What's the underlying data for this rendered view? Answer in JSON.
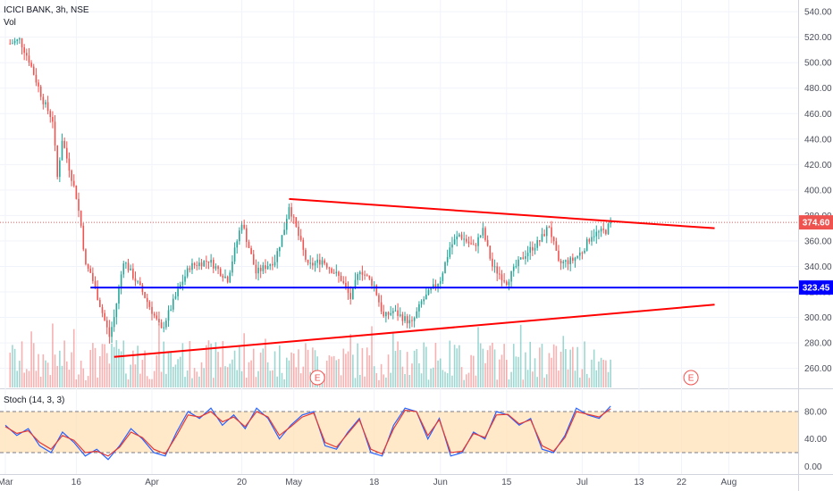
{
  "header": {
    "symbol_line": "ICICI BANK, 3h, NSE",
    "vol_label": "Vol"
  },
  "stoch_header": "Stoch (14, 3, 3)",
  "colors": {
    "up": "#26a69a",
    "down": "#ef5350",
    "trendline": "#ff0000",
    "support": "#0000ff",
    "price_tag": "#ef5350",
    "support_tag": "#0000ff",
    "stoch_k": "#2962ff",
    "stoch_d": "#e53935",
    "stoch_band": "#ffe0b2"
  },
  "chart_data": [
    {
      "type": "candlestick",
      "title": "ICICI BANK, 3h, NSE",
      "price_axis": {
        "min": 245,
        "max": 545,
        "ticks": [
          260,
          280,
          300,
          320,
          340,
          360,
          380,
          400,
          420,
          440,
          460,
          480,
          500,
          520,
          540
        ]
      },
      "time_axis": {
        "labels": [
          "Mar",
          "16",
          "Apr",
          "20",
          "May",
          "18",
          "Jun",
          "15",
          "Jul",
          "13",
          "22",
          "Aug"
        ]
      },
      "last_price": 374.6,
      "last_price_label": "374.60",
      "support_level": 323.45,
      "support_label": "323.45",
      "approx_closes": [
        {
          "date": "Mar 02",
          "close": 515
        },
        {
          "date": "Mar 04",
          "close": 518
        },
        {
          "date": "Mar 06",
          "close": 502
        },
        {
          "date": "Mar 09",
          "close": 470
        },
        {
          "date": "Mar 11",
          "close": 455
        },
        {
          "date": "Mar 12",
          "close": 410
        },
        {
          "date": "Mar 13",
          "close": 440
        },
        {
          "date": "Mar 16",
          "close": 395
        },
        {
          "date": "Mar 17",
          "close": 372
        },
        {
          "date": "Mar 18",
          "close": 340
        },
        {
          "date": "Mar 19",
          "close": 335
        },
        {
          "date": "Mar 23",
          "close": 285
        },
        {
          "date": "Mar 24",
          "close": 300
        },
        {
          "date": "Mar 26",
          "close": 345
        },
        {
          "date": "Mar 30",
          "close": 320
        },
        {
          "date": "Apr 03",
          "close": 290
        },
        {
          "date": "Apr 07",
          "close": 325
        },
        {
          "date": "Apr 09",
          "close": 340
        },
        {
          "date": "Apr 13",
          "close": 345
        },
        {
          "date": "Apr 17",
          "close": 330
        },
        {
          "date": "Apr 20",
          "close": 375
        },
        {
          "date": "Apr 23",
          "close": 335
        },
        {
          "date": "Apr 27",
          "close": 345
        },
        {
          "date": "Apr 29",
          "close": 370
        },
        {
          "date": "Apr 30",
          "close": 388
        },
        {
          "date": "May 04",
          "close": 340
        },
        {
          "date": "May 07",
          "close": 345
        },
        {
          "date": "May 11",
          "close": 330
        },
        {
          "date": "May 13",
          "close": 315
        },
        {
          "date": "May 15",
          "close": 338
        },
        {
          "date": "May 18",
          "close": 325
        },
        {
          "date": "May 20",
          "close": 300
        },
        {
          "date": "May 22",
          "close": 305
        },
        {
          "date": "May 26",
          "close": 295
        },
        {
          "date": "May 28",
          "close": 312
        },
        {
          "date": "Jun 01",
          "close": 330
        },
        {
          "date": "Jun 03",
          "close": 355
        },
        {
          "date": "Jun 05",
          "close": 365
        },
        {
          "date": "Jun 08",
          "close": 355
        },
        {
          "date": "Jun 10",
          "close": 368
        },
        {
          "date": "Jun 12",
          "close": 340
        },
        {
          "date": "Jun 15",
          "close": 328
        },
        {
          "date": "Jun 17",
          "close": 340
        },
        {
          "date": "Jun 19",
          "close": 350
        },
        {
          "date": "Jun 22",
          "close": 360
        },
        {
          "date": "Jun 24",
          "close": 372
        },
        {
          "date": "Jun 26",
          "close": 342
        },
        {
          "date": "Jun 29",
          "close": 345
        },
        {
          "date": "Jul 01",
          "close": 352
        },
        {
          "date": "Jul 03",
          "close": 365
        },
        {
          "date": "Jul 06",
          "close": 368
        },
        {
          "date": "Jul 07",
          "close": 374.6
        }
      ],
      "trendlines": [
        {
          "name": "descending resistance",
          "from": {
            "date": "Apr 30",
            "price": 393
          },
          "to": {
            "date": "Jul 29",
            "price": 370
          }
        },
        {
          "name": "ascending support",
          "from": {
            "date": "Mar 24",
            "price": 269
          },
          "to": {
            "date": "Jul 29",
            "price": 310
          }
        }
      ],
      "earnings_markers": [
        {
          "date": "May 06",
          "label": "E"
        },
        {
          "date": "Jul 24",
          "label": "E"
        }
      ],
      "volume_shown": true
    },
    {
      "type": "line",
      "title": "Stoch (14, 3, 3)",
      "price_axis": {
        "ticks": [
          0,
          40,
          80
        ],
        "tick_labels": [
          "0.00",
          "40.00",
          "80.00"
        ],
        "range": [
          -10,
          110
        ]
      },
      "overbought": 80,
      "oversold": 20,
      "series": [
        {
          "name": "%K",
          "approx_values": [
            60,
            45,
            55,
            30,
            20,
            50,
            35,
            15,
            25,
            10,
            30,
            55,
            40,
            20,
            15,
            50,
            80,
            70,
            85,
            60,
            75,
            55,
            85,
            70,
            40,
            60,
            75,
            80,
            30,
            25,
            50,
            70,
            20,
            15,
            60,
            85,
            80,
            40,
            70,
            15,
            20,
            50,
            40,
            80,
            75,
            60,
            70,
            25,
            20,
            45,
            85,
            75,
            70,
            88
          ]
        },
        {
          "name": "%D",
          "approx_values": [
            58,
            48,
            52,
            35,
            25,
            45,
            38,
            20,
            22,
            15,
            28,
            50,
            42,
            25,
            18,
            45,
            75,
            72,
            80,
            65,
            72,
            58,
            80,
            72,
            45,
            58,
            72,
            78,
            35,
            28,
            48,
            68,
            25,
            18,
            55,
            82,
            80,
            45,
            68,
            20,
            22,
            48,
            42,
            75,
            76,
            62,
            68,
            30,
            22,
            42,
            80,
            76,
            72,
            84
          ]
        }
      ]
    }
  ]
}
